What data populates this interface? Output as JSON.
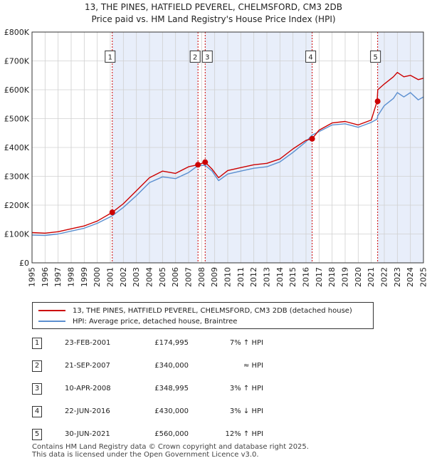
{
  "header": {
    "title": "13, THE PINES, HATFIELD PEVEREL, CHELMSFORD, CM3 2DB",
    "subtitle": "Price paid vs. HM Land Registry's House Price Index (HPI)"
  },
  "colors": {
    "property_line": "#cc0000",
    "hpi_line": "#5b8fd0",
    "band_fill": "#e8eefa",
    "marker_line": "#cc0000",
    "grid": "#d0d0d0"
  },
  "chart_data": {
    "type": "line",
    "title": "Price paid vs. HM Land Registry's House Price Index (HPI)",
    "xlabel": "",
    "ylabel": "",
    "xlim": [
      1995,
      2025
    ],
    "ylim": [
      0,
      800000
    ],
    "x_ticks": [
      "1995",
      "1996",
      "1997",
      "1998",
      "1999",
      "2000",
      "2001",
      "2002",
      "2003",
      "2004",
      "2005",
      "2006",
      "2007",
      "2008",
      "2009",
      "2010",
      "2011",
      "2012",
      "2013",
      "2014",
      "2015",
      "2016",
      "2017",
      "2018",
      "2019",
      "2020",
      "2021",
      "2022",
      "2023",
      "2024",
      "2025"
    ],
    "y_ticks": [
      {
        "value": 0,
        "label": "£0"
      },
      {
        "value": 100000,
        "label": "£100K"
      },
      {
        "value": 200000,
        "label": "£200K"
      },
      {
        "value": 300000,
        "label": "£300K"
      },
      {
        "value": 400000,
        "label": "£400K"
      },
      {
        "value": 500000,
        "label": "£500K"
      },
      {
        "value": 600000,
        "label": "£600K"
      },
      {
        "value": 700000,
        "label": "£700K"
      },
      {
        "value": 800000,
        "label": "£800K"
      }
    ],
    "grid": true,
    "shaded_bands": [
      [
        2001.15,
        2007.72
      ],
      [
        2008.27,
        2016.47
      ],
      [
        2021.49,
        2025
      ]
    ],
    "series": [
      {
        "name": "13, THE PINES, HATFIELD PEVEREL, CHELMSFORD, CM3 2DB (detached house)",
        "color": "#cc0000",
        "x": [
          1995,
          1996,
          1997,
          1998,
          1999,
          2000,
          2001.15,
          2002,
          2003,
          2004,
          2005,
          2006,
          2007,
          2007.72,
          2008.27,
          2008.8,
          2009.3,
          2010,
          2011,
          2012,
          2013,
          2014,
          2015,
          2016,
          2016.47,
          2017,
          2018,
          2019,
          2020,
          2021,
          2021.45,
          2021.5,
          2022,
          2022.7,
          2023,
          2023.5,
          2024,
          2024.6,
          2025
        ],
        "values": [
          105000,
          103000,
          108000,
          118000,
          128000,
          145000,
          174995,
          205000,
          250000,
          295000,
          318000,
          310000,
          333000,
          340000,
          348995,
          325000,
          295000,
          320000,
          330000,
          340000,
          345000,
          360000,
          395000,
          425000,
          430000,
          460000,
          485000,
          490000,
          478000,
          495000,
          560000,
          600000,
          620000,
          645000,
          660000,
          645000,
          650000,
          635000,
          640000
        ]
      },
      {
        "name": "HPI: Average price, detached house, Braintree",
        "color": "#5b8fd0",
        "x": [
          1995,
          1996,
          1997,
          1998,
          1999,
          2000,
          2001.15,
          2002,
          2003,
          2004,
          2005,
          2006,
          2007,
          2007.72,
          2008.27,
          2008.8,
          2009.3,
          2010,
          2011,
          2012,
          2013,
          2014,
          2015,
          2016,
          2016.47,
          2017,
          2018,
          2019,
          2020,
          2021,
          2021.45,
          2021.5,
          2022,
          2022.7,
          2023,
          2023.5,
          2024,
          2024.6,
          2025
        ],
        "values": [
          96000,
          95000,
          100000,
          110000,
          120000,
          137000,
          163000,
          192000,
          233000,
          278000,
          298000,
          292000,
          313000,
          337000,
          338000,
          318000,
          285000,
          308000,
          318000,
          328000,
          333000,
          350000,
          383000,
          420000,
          443000,
          455000,
          478000,
          482000,
          470000,
          487000,
          498000,
          510000,
          545000,
          570000,
          590000,
          575000,
          590000,
          565000,
          575000
        ]
      }
    ],
    "sale_points": [
      {
        "num": "1",
        "x": 2001.15,
        "price": 174995
      },
      {
        "num": "2",
        "x": 2007.72,
        "price": 340000
      },
      {
        "num": "3",
        "x": 2008.27,
        "price": 348995
      },
      {
        "num": "4",
        "x": 2016.47,
        "price": 430000
      },
      {
        "num": "5",
        "x": 2021.49,
        "price": 560000
      }
    ]
  },
  "legend": {
    "property_label": "13, THE PINES, HATFIELD PEVEREL, CHELMSFORD, CM3 2DB (detached house)",
    "hpi_label": "HPI: Average price, detached house, Braintree"
  },
  "transactions": [
    {
      "num": "1",
      "date": "23-FEB-2001",
      "price": "£174,995",
      "hpi": "7% ↑ HPI"
    },
    {
      "num": "2",
      "date": "21-SEP-2007",
      "price": "£340,000",
      "hpi": "≈ HPI"
    },
    {
      "num": "3",
      "date": "10-APR-2008",
      "price": "£348,995",
      "hpi": "3% ↑ HPI"
    },
    {
      "num": "4",
      "date": "22-JUN-2016",
      "price": "£430,000",
      "hpi": "3% ↓ HPI"
    },
    {
      "num": "5",
      "date": "30-JUN-2021",
      "price": "£560,000",
      "hpi": "12% ↑ HPI"
    }
  ],
  "footer": {
    "line1": "Contains HM Land Registry data © Crown copyright and database right 2025.",
    "line2": "This data is licensed under the Open Government Licence v3.0."
  }
}
